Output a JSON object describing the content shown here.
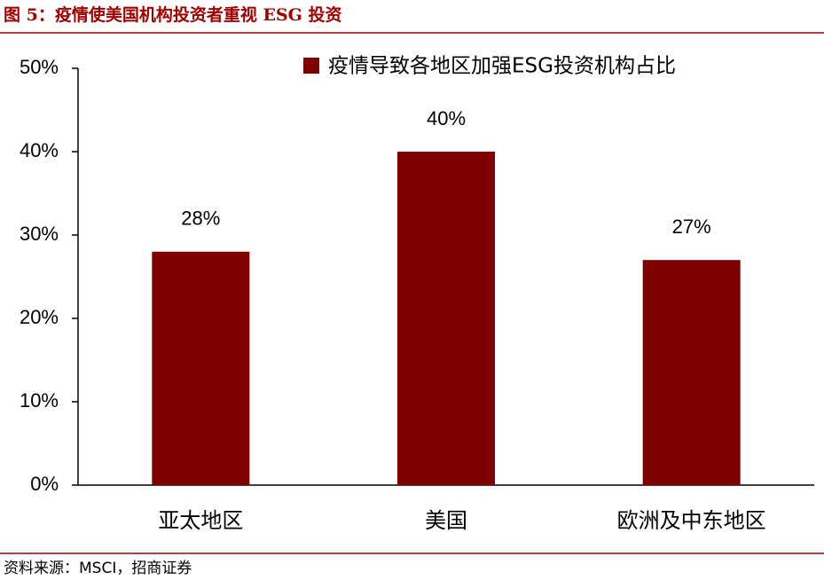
{
  "title": "图 5：疫情使美国机构投资者重视 ESG 投资",
  "source": "资料来源：MSCI，招商证券",
  "chart_data": {
    "type": "bar",
    "categories": [
      "亚太地区",
      "美国",
      "欧洲及中东地区"
    ],
    "series": [
      {
        "name": "疫情导致各地区加强ESG投资机构占比",
        "color": "#800000",
        "values": [
          28,
          40,
          27
        ],
        "value_labels": [
          "28%",
          "40%",
          "27%"
        ]
      }
    ],
    "ylim": [
      0,
      50
    ],
    "yticks": [
      {
        "value": 0,
        "label": "0%"
      },
      {
        "value": 10,
        "label": "10%"
      },
      {
        "value": 20,
        "label": "20%"
      },
      {
        "value": 30,
        "label": "30%"
      },
      {
        "value": 40,
        "label": "40%"
      },
      {
        "value": 50,
        "label": "50%"
      }
    ],
    "legend": "top-right"
  }
}
